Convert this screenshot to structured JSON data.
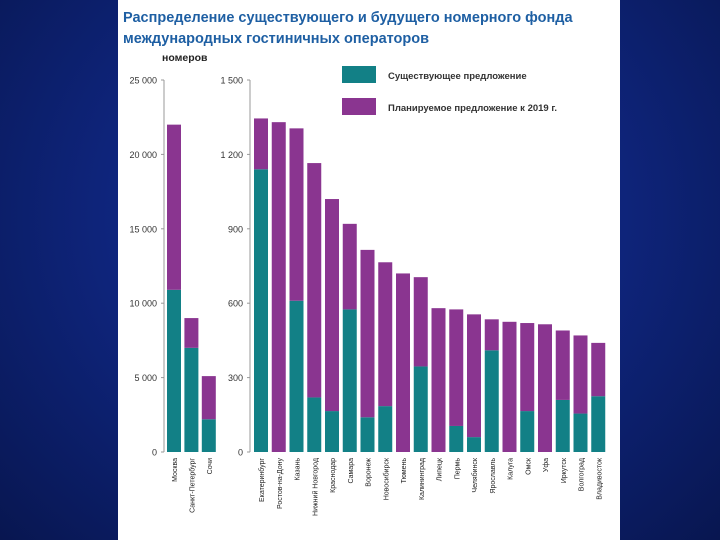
{
  "chart_data": {
    "type": "bar",
    "stacked": true,
    "title_line1": "Распределение существующего и будущего номерного фонда",
    "title_line2": "международных гостиничных операторов",
    "ylabel": "номеров",
    "legend": {
      "position": "top-right",
      "entries": [
        "Существующее предложение",
        "Планируемое предложение к 2019 г."
      ]
    },
    "colors": {
      "existing": "#128086",
      "planned": "#8a3590"
    },
    "panels": [
      {
        "name": "federal-cities",
        "ylim": [
          0,
          25000
        ],
        "yticks": [
          0,
          5000,
          10000,
          15000,
          20000,
          25000
        ],
        "tick_labels": [
          "0",
          "5 000",
          "10 000",
          "15 000",
          "20 000",
          "25 000"
        ],
        "categories": [
          "Москва",
          "Санкт-Петербург",
          "Сочи"
        ],
        "series": [
          {
            "name": "Существующее предложение",
            "values": [
              10900,
              7000,
              2200
            ]
          },
          {
            "name": "Планируемое предложение к 2019 г.",
            "values": [
              11100,
              2000,
              2900
            ]
          }
        ]
      },
      {
        "name": "regional-cities",
        "ylim": [
          0,
          1500
        ],
        "yticks": [
          0,
          300,
          600,
          900,
          1200,
          1500
        ],
        "tick_labels": [
          "0",
          "300",
          "600",
          "900",
          "1 200",
          "1 500"
        ],
        "categories": [
          "Екатеринбург",
          "Ростов-на-Дону",
          "Казань",
          "Нижний Новгород",
          "Краснодар",
          "Самара",
          "Воронеж",
          "Новосибирск",
          "Тюмень",
          "Калининград",
          "Липецк",
          "Пермь",
          "Челябинск",
          "Ярославль",
          "Калуга",
          "Омск",
          "Уфа",
          "Иркутск",
          "Волгоград",
          "Владивосток"
        ],
        "series": [
          {
            "name": "Существующее предложение",
            "values": [
              1140,
              0,
              610,
              220,
              165,
              575,
              140,
              185,
              0,
              345,
              0,
              105,
              60,
              410,
              0,
              165,
              0,
              210,
              155,
              225
            ]
          },
          {
            "name": "Планируемое предложение к 2019 г.",
            "values": [
              205,
              1330,
              695,
              945,
              855,
              345,
              675,
              580,
              720,
              360,
              580,
              470,
              495,
              125,
              525,
              355,
              515,
              280,
              315,
              215
            ]
          }
        ]
      }
    ]
  }
}
